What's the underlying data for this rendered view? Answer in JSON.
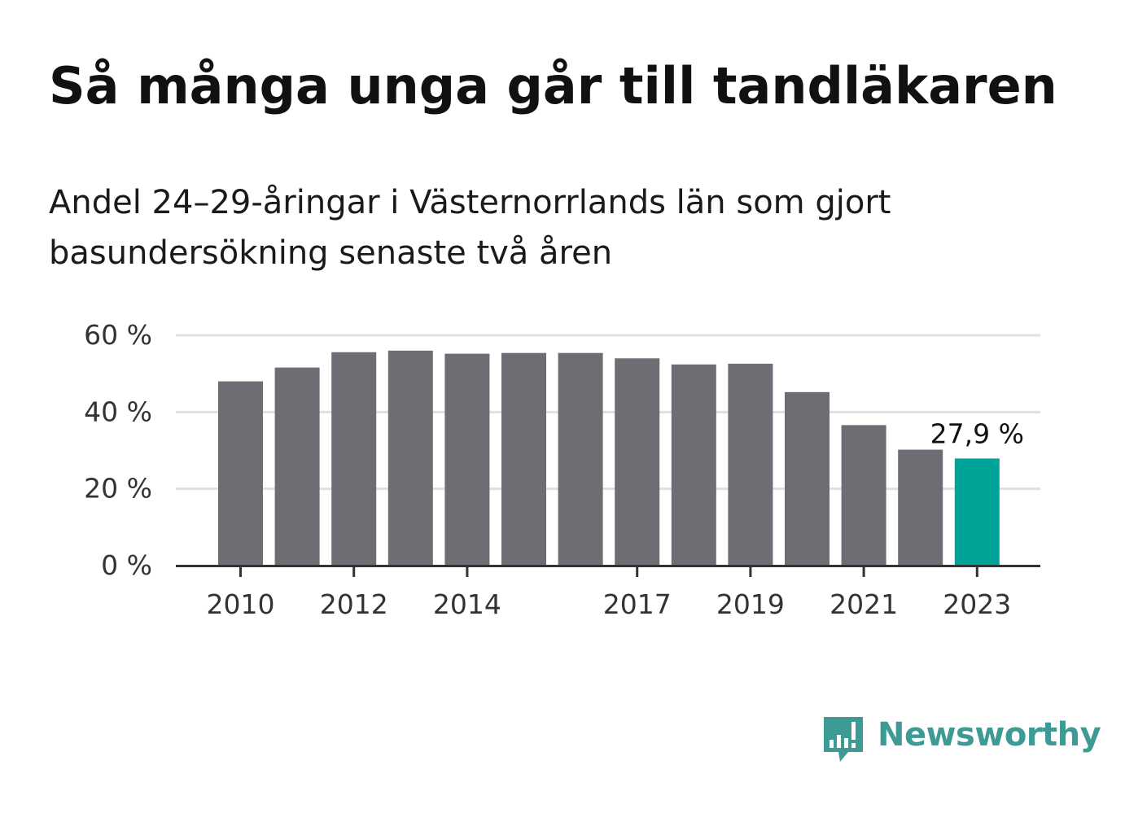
{
  "title": "Så många unga går till tandläkaren",
  "subtitle": "Andel 24–29-åringar i Västernorrlands län som gjort basundersökning senaste två åren",
  "colors": {
    "bar_default": "#6e6d73",
    "bar_highlight": "#00a398",
    "grid": "#e0e0e0",
    "axis": "#333333",
    "brand": "#3d9a94"
  },
  "chart_data": {
    "type": "bar",
    "categories": [
      "2010",
      "2011",
      "2012",
      "2013",
      "2014",
      "2015",
      "2016",
      "2017",
      "2018",
      "2019",
      "2020",
      "2021",
      "2022",
      "2023"
    ],
    "values": [
      48.0,
      51.6,
      55.6,
      56.0,
      55.2,
      55.4,
      55.4,
      54.0,
      52.4,
      52.6,
      45.2,
      36.6,
      30.2,
      27.9
    ],
    "highlight_index": 13,
    "y_ticks": [
      0,
      20,
      40,
      60
    ],
    "y_tick_labels": [
      "0 %",
      "20 %",
      "40 %",
      "60 %"
    ],
    "x_tick_labels": [
      "2010",
      "2012",
      "2014",
      "2017",
      "2019",
      "2021",
      "2023"
    ],
    "data_labels": [
      {
        "category": "2023",
        "text": "27,9 %"
      }
    ],
    "ylim": [
      0,
      60
    ],
    "grid": true,
    "legend": "none",
    "xlabel": "",
    "ylabel": ""
  },
  "brand": {
    "name": "Newsworthy",
    "logo_icon": "newsworthy-logo-icon"
  }
}
